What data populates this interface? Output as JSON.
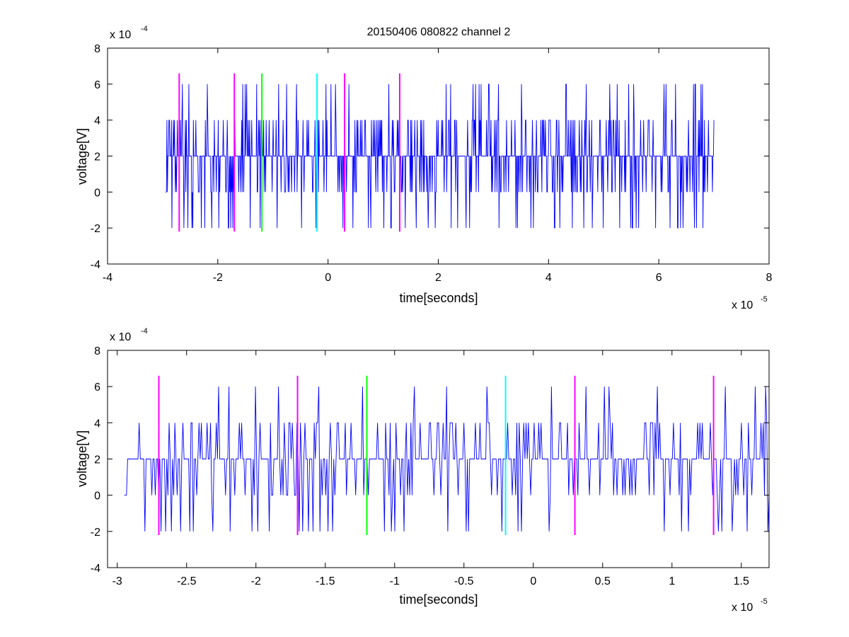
{
  "chart_data": [
    {
      "type": "line",
      "title": "20150406 080822 channel 2",
      "xlabel": "time[seconds]",
      "ylabel": "voltage[V]",
      "x_exponent_label": "x 10",
      "x_exponent": "-5",
      "y_exponent_label": "x 10",
      "y_exponent": "-4",
      "xlim": [
        -4,
        8
      ],
      "ylim": [
        -4,
        8
      ],
      "xticks": [
        -4,
        -2,
        0,
        2,
        4,
        6,
        8
      ],
      "yticks": [
        -4,
        -2,
        0,
        2,
        4,
        6,
        8
      ],
      "xtick_labels": [
        "-4",
        "-2",
        "0",
        "2",
        "4",
        "6",
        "8"
      ],
      "ytick_labels": [
        "-4",
        "-2",
        "0",
        "2",
        "4",
        "6",
        "8"
      ],
      "grid": false,
      "signal": {
        "color": "#0000ff",
        "x_start": -2.95,
        "x_end": 7.0,
        "levels": [
          -2,
          0,
          2,
          4,
          6
        ],
        "baseline": 2
      },
      "markers": [
        {
          "x": -2.7,
          "color": "#ff00ff",
          "y_range": [
            -2.2,
            6.6
          ]
        },
        {
          "x": -1.7,
          "color": "#ff00ff",
          "y_range": [
            -2.2,
            6.6
          ]
        },
        {
          "x": -1.2,
          "color": "#00ff00",
          "y_range": [
            -2.2,
            6.6
          ]
        },
        {
          "x": -0.2,
          "color": "#00ffff",
          "y_range": [
            -2.2,
            6.6
          ]
        },
        {
          "x": 0.3,
          "color": "#ff00ff",
          "y_range": [
            -2.2,
            6.6
          ]
        },
        {
          "x": 1.3,
          "color": "#ff00ff",
          "y_range": [
            -2.2,
            6.6
          ]
        }
      ]
    },
    {
      "type": "line",
      "title": "",
      "xlabel": "time[seconds]",
      "ylabel": "voltage[V]",
      "x_exponent_label": "x 10",
      "x_exponent": "-5",
      "y_exponent_label": "x 10",
      "y_exponent": "-4",
      "xlim": [
        -3.07,
        1.7
      ],
      "ylim": [
        -4,
        8
      ],
      "xticks": [
        -3,
        -2.5,
        -2,
        -1.5,
        -1,
        -0.5,
        0,
        0.5,
        1,
        1.5
      ],
      "yticks": [
        -4,
        -2,
        0,
        2,
        4,
        6,
        8
      ],
      "xtick_labels": [
        "-3",
        "-2.5",
        "-2",
        "-1.5",
        "-1",
        "-0.5",
        "0",
        "0.5",
        "1",
        "1.5"
      ],
      "ytick_labels": [
        "-4",
        "-2",
        "0",
        "2",
        "4",
        "6",
        "8"
      ],
      "grid": false,
      "signal": {
        "color": "#0000ff",
        "x_start": -2.95,
        "x_end": 1.7,
        "levels": [
          -2,
          0,
          2,
          4,
          6
        ],
        "baseline": 2
      },
      "markers": [
        {
          "x": -2.7,
          "color": "#ff00ff",
          "y_range": [
            -2.2,
            6.6
          ]
        },
        {
          "x": -1.7,
          "color": "#ff00ff",
          "y_range": [
            -2.2,
            6.6
          ]
        },
        {
          "x": -1.2,
          "color": "#00ff00",
          "y_range": [
            -2.2,
            6.6
          ]
        },
        {
          "x": -0.2,
          "color": "#00ffff",
          "y_range": [
            -2.2,
            6.6
          ]
        },
        {
          "x": 0.3,
          "color": "#ff00ff",
          "y_range": [
            -2.2,
            6.6
          ]
        },
        {
          "x": 1.3,
          "color": "#ff00ff",
          "y_range": [
            -2.2,
            6.6
          ]
        }
      ]
    }
  ]
}
